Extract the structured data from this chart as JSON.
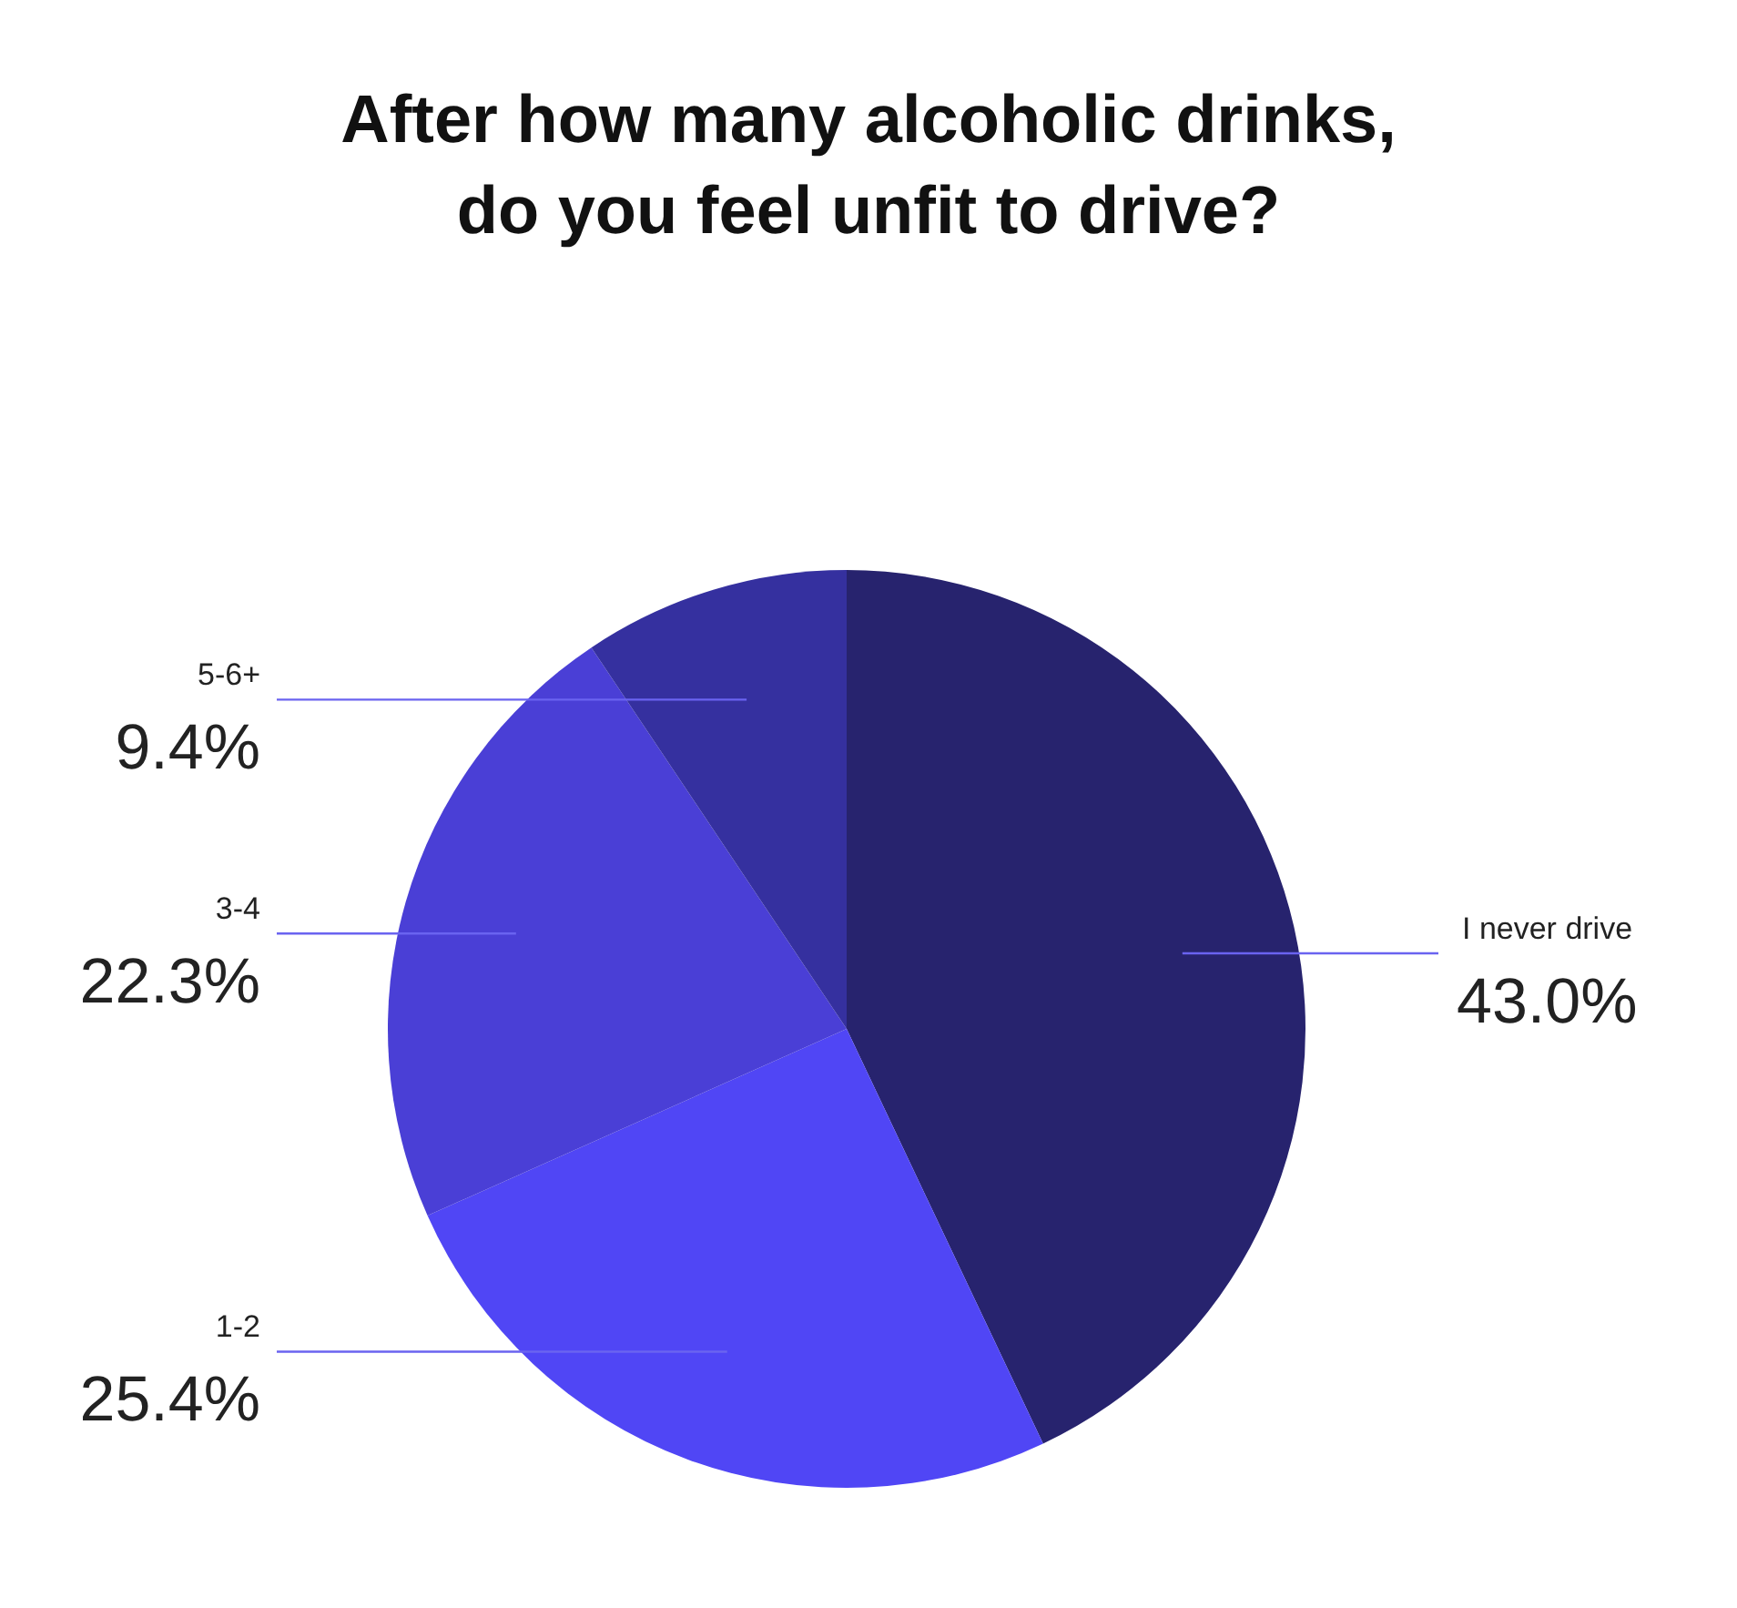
{
  "chart_data": {
    "type": "pie",
    "title": "After how many alcoholic drinks,\ndo you feel unfit to drive?",
    "categories": [
      "I never drive",
      "1-2",
      "3-4",
      "5-6+"
    ],
    "values": [
      43.0,
      25.4,
      22.3,
      9.4
    ],
    "value_labels": [
      "43.0%",
      "25.4%",
      "22.3%",
      "9.4%"
    ],
    "colors": [
      "#27236e",
      "#5046f5",
      "#4a3fd6",
      "#35309f"
    ],
    "legend": false
  }
}
